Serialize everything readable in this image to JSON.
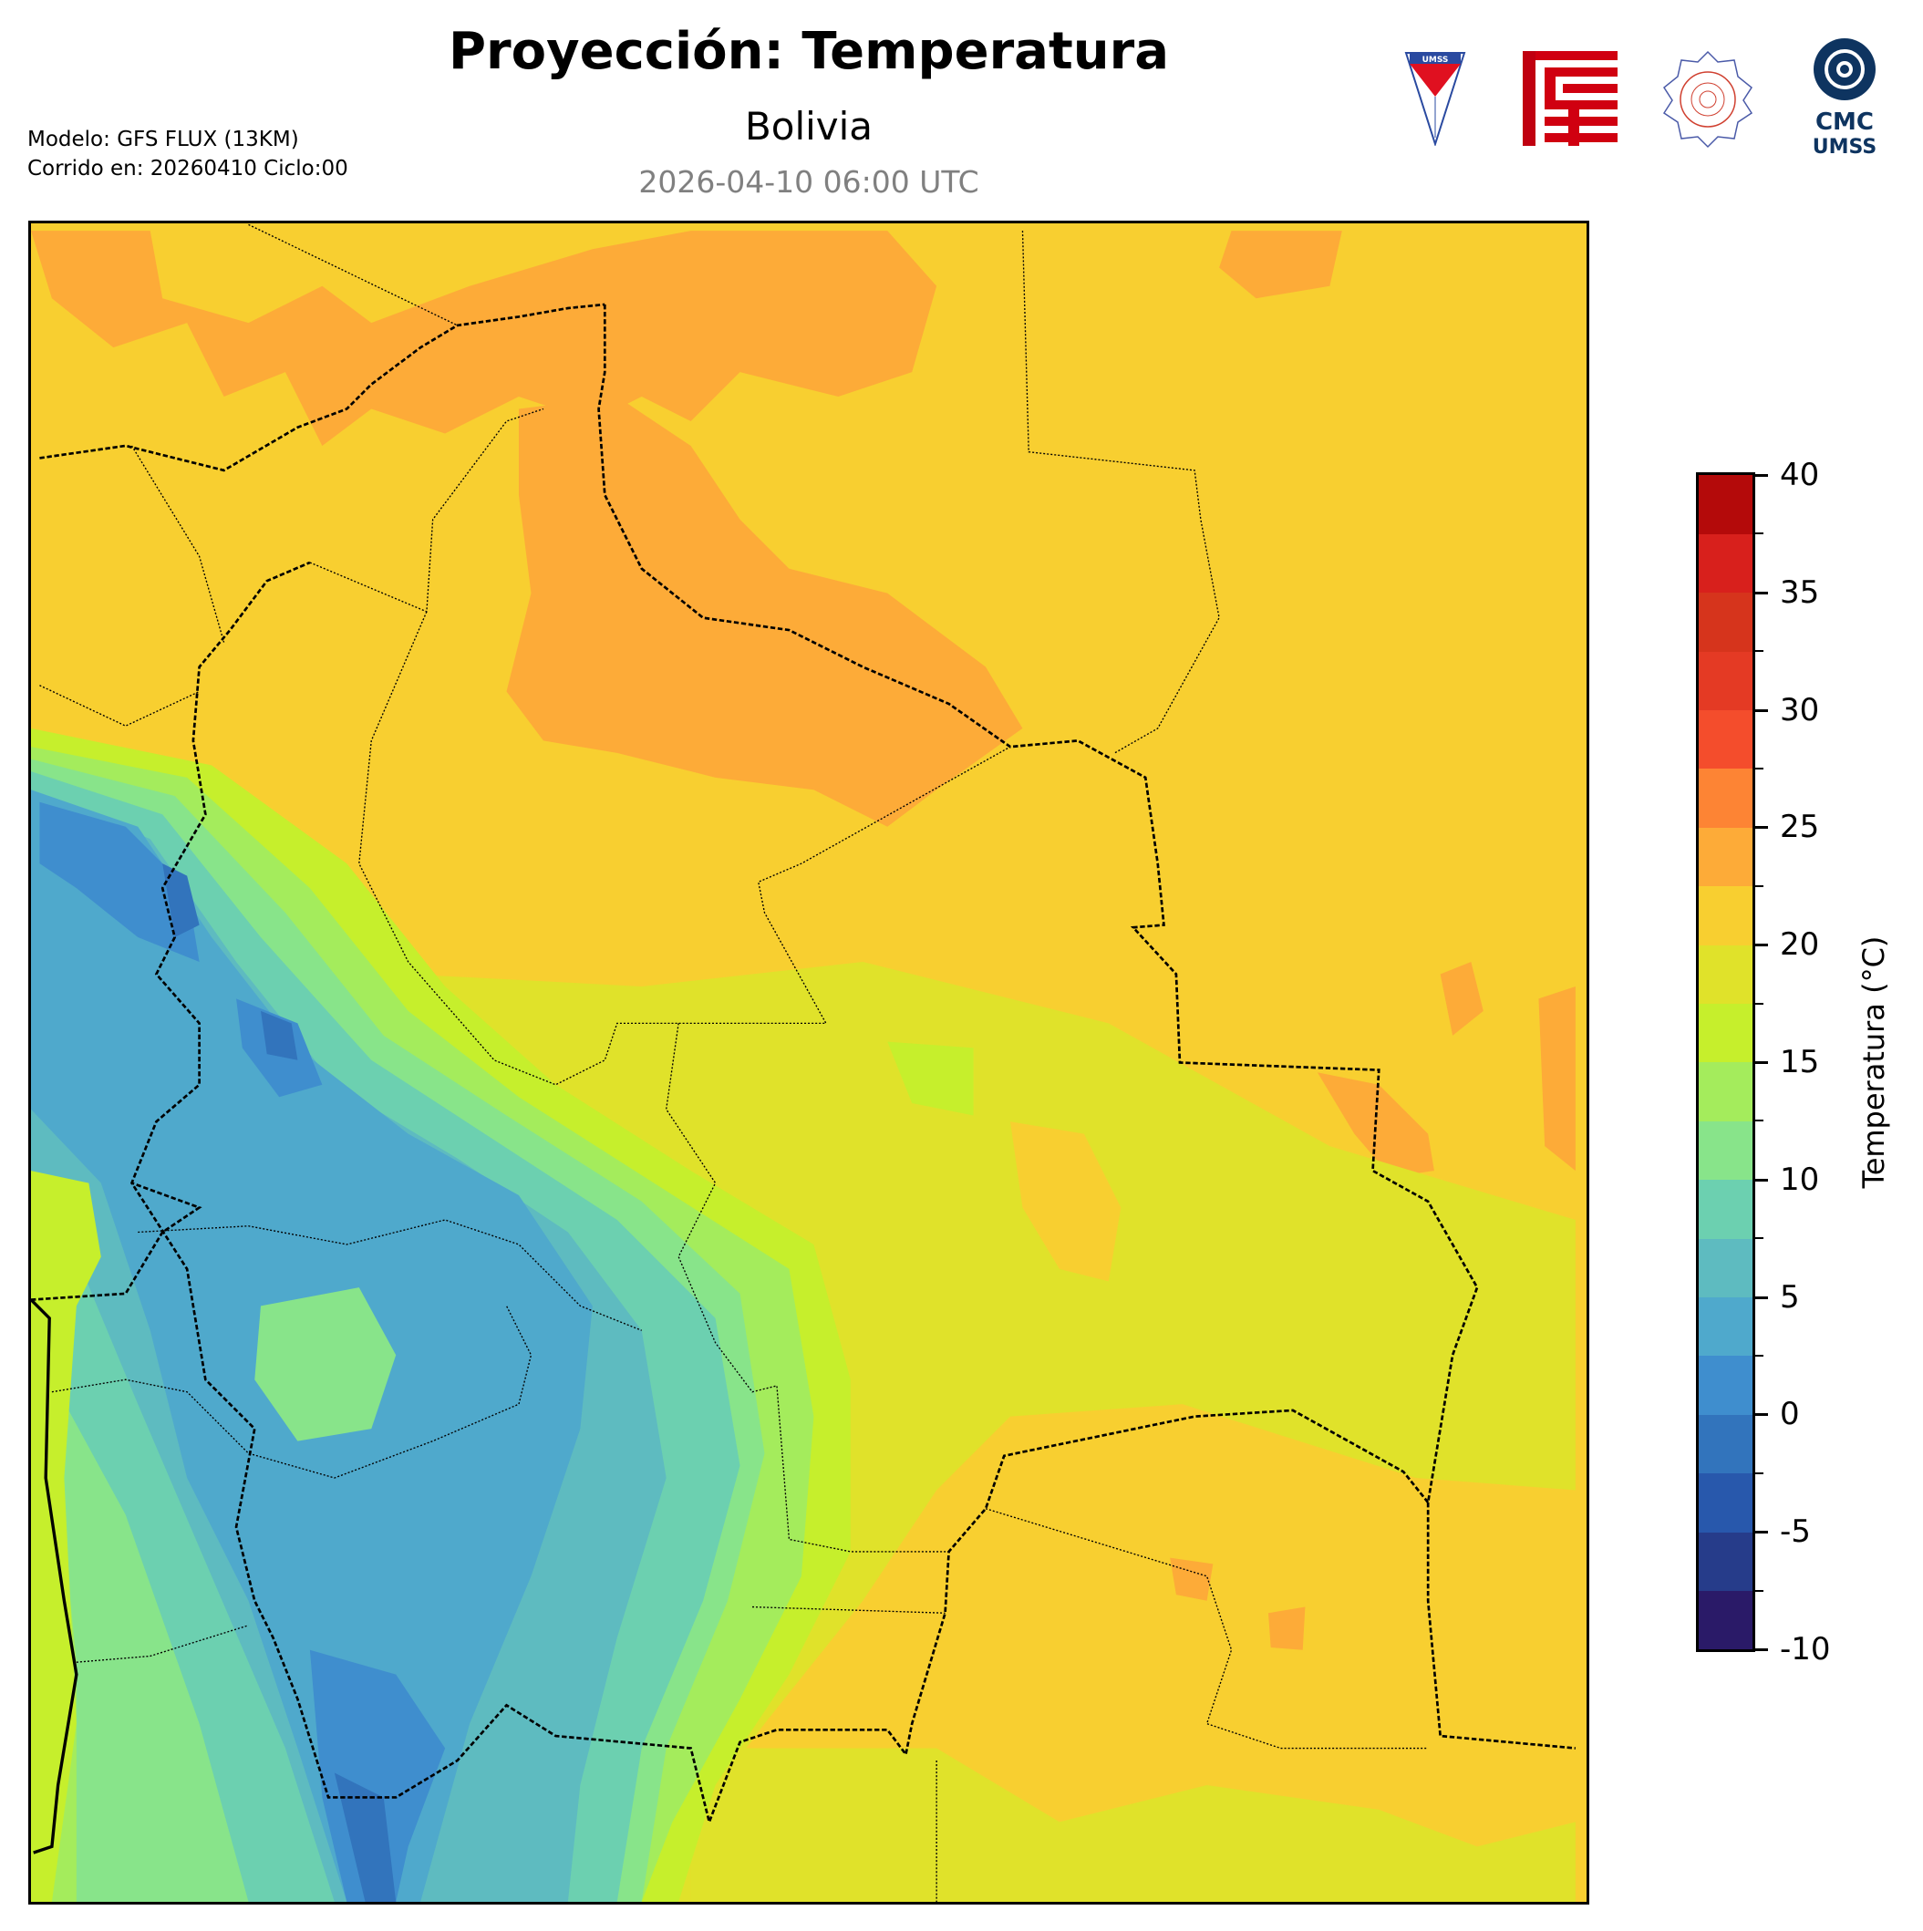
{
  "header": {
    "title": "Proyección: Temperatura",
    "subtitle": "Bolivia",
    "valid_time": "2026-04-10 06:00 UTC",
    "model": "Modelo: GFS FLUX (13KM)",
    "run": "Corrido en: 20260410 Ciclo:00"
  },
  "logos": {
    "umss_shield_text": "UMSS",
    "cmc_line1": "CMC",
    "cmc_line2": "UMSS"
  },
  "colorbar": {
    "label": "Temperatura (°C)",
    "min": -10,
    "max": 40,
    "step": 2.5,
    "ticks": [
      "40",
      "35",
      "30",
      "25",
      "20",
      "15",
      "10",
      "5",
      "0",
      "-5",
      "-10"
    ],
    "colors": [
      "#2a1a68",
      "#263c8a",
      "#2858ac",
      "#3274bc",
      "#3f8ece",
      "#4fa9cc",
      "#5ebbc0",
      "#6cd0b0",
      "#88e48a",
      "#a4ec5c",
      "#c6ef2c",
      "#e0e22a",
      "#f8cf30",
      "#fdab38",
      "#fd8434",
      "#f44d2c",
      "#e43a24",
      "#d6341c",
      "#d8201c",
      "#b40a0a"
    ]
  }
}
